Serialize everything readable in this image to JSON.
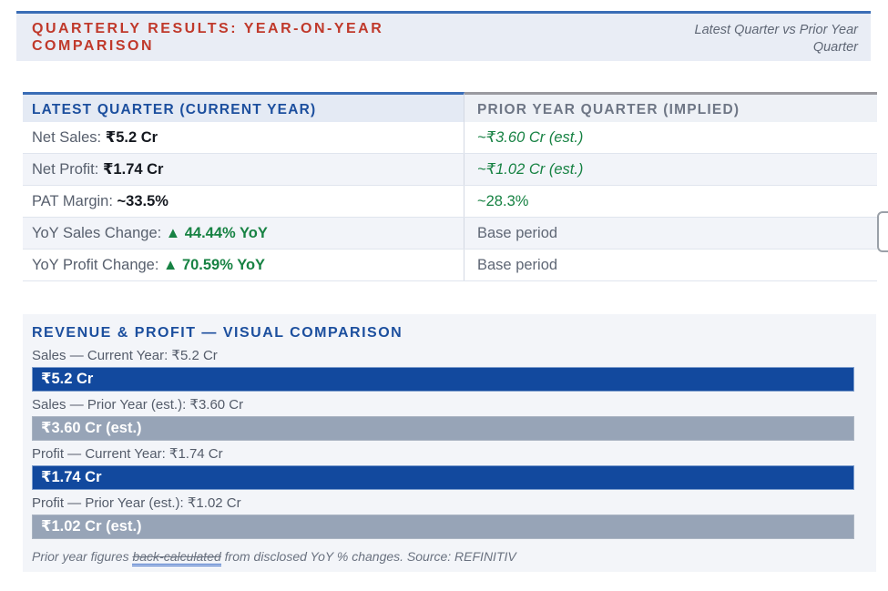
{
  "header": {
    "title": "QUARTERLY RESULTS: YEAR-ON-YEAR COMPARISON",
    "subtitle": "Latest Quarter vs Prior Year Quarter"
  },
  "comparison_table": {
    "col_current": "LATEST QUARTER (CURRENT YEAR)",
    "col_prior": "PRIOR YEAR QUARTER (IMPLIED)",
    "rows": [
      {
        "label": "Net Sales:",
        "value": "₹5.2 Cr",
        "prior": "~₹3.60 Cr (est.)"
      },
      {
        "label": "Net Profit:",
        "value": "₹1.74 Cr",
        "prior": "~₹1.02 Cr (est.)"
      },
      {
        "label": "PAT Margin:",
        "value": "~33.5%",
        "prior": "~28.3%"
      },
      {
        "label": "YoY Sales Change:",
        "value": "▲ 44.44% YoY",
        "prior": "Base period"
      },
      {
        "label": "YoY Profit Change:",
        "value": "▲ 70.59% YoY",
        "prior": "Base period"
      }
    ]
  },
  "visual": {
    "title": "REVENUE & PROFIT — VISUAL COMPARISON",
    "bars": [
      {
        "label": "Sales — Current Year: ₹5.2 Cr",
        "bar_text": "₹5.2 Cr"
      },
      {
        "label": "Sales — Prior Year (est.): ₹3.60 Cr",
        "bar_text": "₹3.60 Cr (est.)"
      },
      {
        "label": "Profit — Current Year: ₹1.74 Cr",
        "bar_text": "₹1.74 Cr"
      },
      {
        "label": "Profit — Prior Year (est.): ₹1.02 Cr",
        "bar_text": "₹1.02 Cr (est.)"
      }
    ],
    "footnote": {
      "prefix": "Prior year figures ",
      "link": "back-calculated",
      "suffix": " from disclosed YoY % changes. Source: REFINITIV"
    }
  },
  "chart_data": {
    "type": "bar",
    "categories": [
      "Sales — Current Year",
      "Sales — Prior Year (est.)",
      "Profit — Current Year",
      "Profit — Prior Year (est.)"
    ],
    "values": [
      5.2,
      3.6,
      1.74,
      1.02
    ],
    "units": "₹ Cr",
    "title": "REVENUE & PROFIT — VISUAL COMPARISON",
    "xlabel": "",
    "ylabel": "",
    "notes": "All bars rendered full-width with value labels inside; current-year bars dark blue, prior-year bars gray"
  },
  "colors": {
    "accent_blue": "#12499e",
    "bar_gray": "#97a4b7",
    "heading_red": "#c0392b",
    "heading_blue": "#1c4f9e",
    "positive_green": "#178243",
    "band_bg": "#e9edf5",
    "panel_bg": "#f3f5f9"
  }
}
